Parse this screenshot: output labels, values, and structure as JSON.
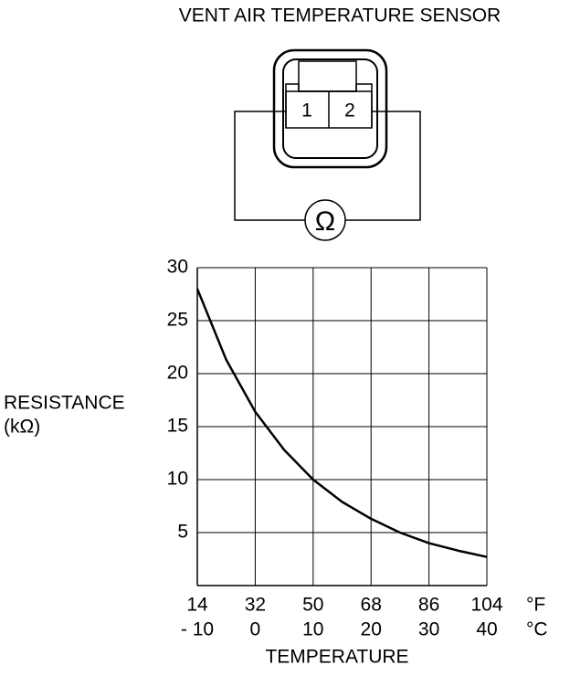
{
  "diagram": {
    "title": "VENT AIR TEMPERATURE SENSOR",
    "pins": [
      "1",
      "2"
    ],
    "meter": "Ω"
  },
  "chart_data": {
    "type": "line",
    "y_label": "RESISTANCE",
    "y_unit": "(kΩ)",
    "x_label": "TEMPERATURE",
    "x_unit": "°C",
    "x_alt_unit": "°F",
    "x": [
      -10,
      -5,
      0,
      5,
      10,
      15,
      20,
      25,
      30,
      35,
      40
    ],
    "series": [
      {
        "color": "#000000",
        "values": [
          28,
          21.3,
          16.4,
          12.8,
          10,
          7.9,
          6.3,
          5.0,
          4.0,
          3.3,
          2.7
        ]
      }
    ],
    "xlim": [
      -10,
      40
    ],
    "xticks": [
      {
        "value": -10,
        "label": "- 10"
      },
      0,
      10,
      20,
      30,
      40
    ],
    "x_alt_ticks": [
      14,
      32,
      50,
      68,
      86,
      104
    ],
    "ylim": [
      0,
      30
    ],
    "yticks": [
      5,
      10,
      15,
      20,
      25,
      30
    ],
    "grid": true
  }
}
